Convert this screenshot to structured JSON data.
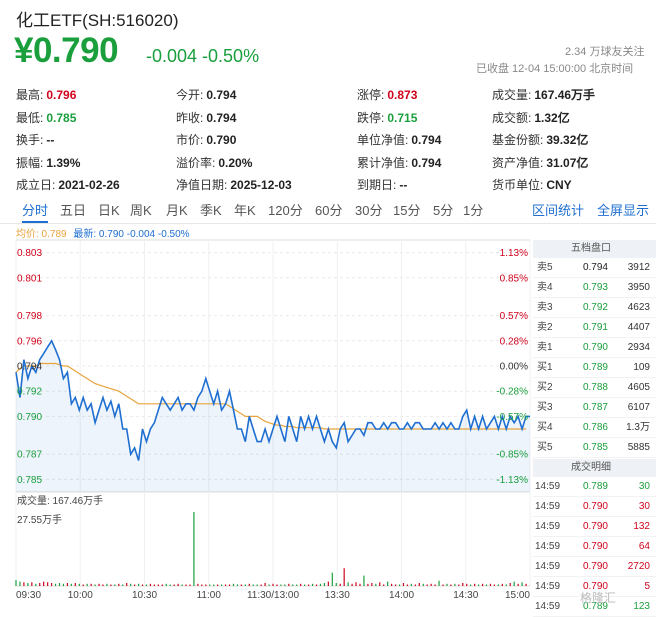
{
  "header": {
    "title": "化工ETF(SH:516020)",
    "price": "¥0.790",
    "change": "-0.004 -0.50%",
    "followers": "2.34 万球友关注",
    "status": "已收盘 12-04 15:00:00 北京时间"
  },
  "stats": [
    [
      {
        "k": "最高:",
        "v": "0.796",
        "c": "red"
      },
      {
        "k": "今开:",
        "v": "0.794",
        "c": "dark"
      },
      {
        "k": "涨停:",
        "v": "0.873",
        "c": "red"
      },
      {
        "k": "成交量:",
        "v": "167.46万手",
        "c": "dark"
      }
    ],
    [
      {
        "k": "最低:",
        "v": "0.785",
        "c": "green"
      },
      {
        "k": "昨收:",
        "v": "0.794",
        "c": "dark"
      },
      {
        "k": "跌停:",
        "v": "0.715",
        "c": "green"
      },
      {
        "k": "成交额:",
        "v": "1.32亿",
        "c": "dark"
      }
    ],
    [
      {
        "k": "换手:",
        "v": "--",
        "c": "dark"
      },
      {
        "k": "市价:",
        "v": "0.790",
        "c": "dark"
      },
      {
        "k": "单位净值:",
        "v": "0.794",
        "c": "dark"
      },
      {
        "k": "基金份额:",
        "v": "39.32亿",
        "c": "dark"
      }
    ],
    [
      {
        "k": "振幅:",
        "v": "1.39%",
        "c": "dark"
      },
      {
        "k": "溢价率:",
        "v": "0.20%",
        "c": "dark"
      },
      {
        "k": "累计净值:",
        "v": "0.794",
        "c": "dark"
      },
      {
        "k": "资产净值:",
        "v": "31.07亿",
        "c": "dark"
      }
    ],
    [
      {
        "k": "成立日:",
        "v": "2021-02-26",
        "c": "dark"
      },
      {
        "k": "净值日期:",
        "v": "2025-12-03",
        "c": "dark"
      },
      {
        "k": "到期日:",
        "v": "--",
        "c": "dark"
      },
      {
        "k": "货币单位:",
        "v": "CNY",
        "c": "dark"
      }
    ]
  ],
  "tabs": [
    "分时",
    "五日",
    "日K",
    "周K",
    "月K",
    "季K",
    "年K",
    "120分",
    "60分",
    "30分",
    "15分",
    "5分",
    "1分"
  ],
  "tabs_right": [
    "区间统计",
    "全屏显示"
  ],
  "legend": {
    "avg": "均价: 0.789",
    "last": "最新: 0.790 -0.004 -0.50%"
  },
  "order_book": {
    "title": "五档盘口",
    "rows": [
      {
        "label": "卖5",
        "price": "0.794",
        "vol": "3912",
        "c": "dark"
      },
      {
        "label": "卖4",
        "price": "0.793",
        "vol": "3950",
        "c": "green"
      },
      {
        "label": "卖3",
        "price": "0.792",
        "vol": "4623",
        "c": "green"
      },
      {
        "label": "卖2",
        "price": "0.791",
        "vol": "4407",
        "c": "green"
      },
      {
        "label": "卖1",
        "price": "0.790",
        "vol": "2934",
        "c": "green"
      },
      {
        "label": "买1",
        "price": "0.789",
        "vol": "109",
        "c": "green"
      },
      {
        "label": "买2",
        "price": "0.788",
        "vol": "4605",
        "c": "green"
      },
      {
        "label": "买3",
        "price": "0.787",
        "vol": "6107",
        "c": "green"
      },
      {
        "label": "买4",
        "price": "0.786",
        "vol": "1.3万",
        "c": "green"
      },
      {
        "label": "买5",
        "price": "0.785",
        "vol": "5885",
        "c": "green"
      }
    ]
  },
  "trades": {
    "title": "成交明细",
    "rows": [
      {
        "time": "14:59",
        "price": "0.789",
        "vol": "30",
        "c": "green",
        "vc": "green"
      },
      {
        "time": "14:59",
        "price": "0.790",
        "vol": "30",
        "c": "red",
        "vc": "red"
      },
      {
        "time": "14:59",
        "price": "0.790",
        "vol": "132",
        "c": "red",
        "vc": "red"
      },
      {
        "time": "14:59",
        "price": "0.790",
        "vol": "64",
        "c": "red",
        "vc": "red"
      },
      {
        "time": "14:59",
        "price": "0.790",
        "vol": "2720",
        "c": "red",
        "vc": "red"
      },
      {
        "time": "14:59",
        "price": "0.790",
        "vol": "5",
        "c": "red",
        "vc": "red"
      },
      {
        "time": "14:59",
        "price": "0.789",
        "vol": "123",
        "c": "green",
        "vc": "green"
      }
    ]
  },
  "watermark": "格隆汇",
  "colors": {
    "up": "#d0021b",
    "down": "#1a9f3c",
    "line": "#1f6fd1",
    "avg": "#e8a33d",
    "accent": "#1f6fd1"
  },
  "chart_data": {
    "type": "line",
    "prev_close": 0.794,
    "ylim": [
      0.784,
      0.804
    ],
    "y_ticks": [
      "0.803",
      "0.801",
      "0.798",
      "0.796",
      "0.794",
      "0.792",
      "0.790",
      "0.787",
      "0.785"
    ],
    "pct_ticks": [
      "1.13%",
      "0.85%",
      "0.57%",
      "0.28%",
      "0.00%",
      "-0.28%",
      "-0.57%",
      "-0.85%",
      "-1.13%"
    ],
    "x_ticks": [
      "09:30",
      "10:00",
      "10:30",
      "11:00",
      "11:30/13:00",
      "13:30",
      "14:00",
      "14:30",
      "15:00"
    ],
    "volume_label": "成交量: 167.46万手",
    "volume_max_label": "27.55万手",
    "price_series": [
      0.7935,
      0.7915,
      0.7945,
      0.793,
      0.794,
      0.7935,
      0.7945,
      0.795,
      0.7955,
      0.796,
      0.7953,
      0.7945,
      0.793,
      0.7935,
      0.791,
      0.7915,
      0.7905,
      0.7915,
      0.7905,
      0.791,
      0.7895,
      0.7905,
      0.7915,
      0.7905,
      0.7912,
      0.79,
      0.791,
      0.789,
      0.789,
      0.787,
      0.7875,
      0.7865,
      0.789,
      0.788,
      0.789,
      0.7895,
      0.7905,
      0.7915,
      0.791,
      0.7905,
      0.791,
      0.7915,
      0.7905,
      0.791,
      0.791,
      0.7905,
      0.7915,
      0.792,
      0.793,
      0.792,
      0.791,
      0.792,
      0.7905,
      0.791,
      0.792,
      0.7905,
      0.789,
      0.789,
      0.788,
      0.79,
      0.789,
      0.788,
      0.788,
      0.789,
      0.788,
      0.789,
      0.79,
      0.789,
      0.788,
      0.79,
      0.789,
      0.788,
      0.79,
      0.789,
      0.79,
      0.789,
      0.79,
      0.789,
      0.788,
      0.789,
      0.788,
      0.7875,
      0.789,
      0.7895,
      0.788,
      0.7885,
      0.789,
      0.789,
      0.7885,
      0.7895,
      0.7895,
      0.789,
      0.789,
      0.7895,
      0.789,
      0.7895,
      0.7895,
      0.789,
      0.789,
      0.7895,
      0.789,
      0.7895,
      0.7895,
      0.789,
      0.789,
      0.789,
      0.7895,
      0.789,
      0.7895,
      0.789,
      0.7895,
      0.789,
      0.789,
      0.79,
      0.7905,
      0.789,
      0.79,
      0.789,
      0.79,
      0.789,
      0.7895,
      0.79,
      0.789,
      0.79,
      0.789,
      0.79,
      0.7895,
      0.79,
      0.789,
      0.79,
      0.79
    ],
    "avg_series": [
      0.7935,
      0.7938,
      0.794,
      0.794,
      0.794,
      0.794,
      0.7942,
      0.7942,
      0.7942,
      0.7942,
      0.7942,
      0.7941,
      0.794,
      0.794,
      0.7938,
      0.7936,
      0.7934,
      0.7932,
      0.793,
      0.7928,
      0.7926,
      0.7925,
      0.7924,
      0.7923,
      0.7922,
      0.7921,
      0.792,
      0.7918,
      0.7916,
      0.7914,
      0.7912,
      0.791,
      0.791,
      0.791,
      0.791,
      0.791,
      0.791,
      0.791,
      0.791,
      0.791,
      0.791,
      0.791,
      0.791,
      0.791,
      0.791,
      0.791,
      0.791,
      0.791,
      0.791,
      0.791,
      0.791,
      0.791,
      0.791,
      0.791,
      0.7908,
      0.7906,
      0.7904,
      0.7902,
      0.79,
      0.79,
      0.79,
      0.79,
      0.7898,
      0.7896,
      0.7895,
      0.7894,
      0.7893,
      0.7893,
      0.7892,
      0.7892,
      0.7892,
      0.7891,
      0.7891,
      0.7891,
      0.7891,
      0.7891,
      0.7891,
      0.7891,
      0.789,
      0.789,
      0.789,
      0.789,
      0.789,
      0.789,
      0.789,
      0.789,
      0.789,
      0.789,
      0.789,
      0.789,
      0.789,
      0.789,
      0.789,
      0.789,
      0.789,
      0.789,
      0.789,
      0.789,
      0.789,
      0.789,
      0.789,
      0.789,
      0.789,
      0.789,
      0.789,
      0.789,
      0.789,
      0.789,
      0.789,
      0.789,
      0.789,
      0.789,
      0.789,
      0.789,
      0.789,
      0.789,
      0.789,
      0.789,
      0.789,
      0.789,
      0.789,
      0.789,
      0.789,
      0.789,
      0.789,
      0.789,
      0.789,
      0.789,
      0.789,
      0.789
    ],
    "volume_series": [
      8,
      6,
      5,
      4,
      5,
      3,
      4,
      6,
      5,
      4,
      3,
      4,
      3,
      4,
      3,
      4,
      3,
      2,
      3,
      3,
      2,
      3,
      2,
      3,
      2,
      2,
      3,
      2,
      4,
      3,
      2,
      3,
      2,
      2,
      3,
      2,
      2,
      2,
      3,
      2,
      2,
      3,
      2,
      2,
      2,
      100,
      3,
      2,
      2,
      2,
      2,
      2,
      2,
      2,
      2,
      3,
      2,
      2,
      2,
      3,
      2,
      2,
      2,
      4,
      2,
      3,
      2,
      2,
      2,
      3,
      2,
      2,
      3,
      2,
      2,
      3,
      2,
      3,
      4,
      6,
      18,
      4,
      3,
      24,
      5,
      3,
      5,
      3,
      14,
      3,
      4,
      3,
      5,
      2,
      6,
      3,
      2,
      2,
      4,
      2,
      3,
      2,
      4,
      3,
      2,
      3,
      2,
      7,
      2,
      3,
      2,
      3,
      2,
      4,
      3,
      2,
      3,
      2,
      3,
      2,
      3,
      2,
      2,
      3,
      2,
      4,
      6,
      3,
      5,
      3
    ]
  }
}
